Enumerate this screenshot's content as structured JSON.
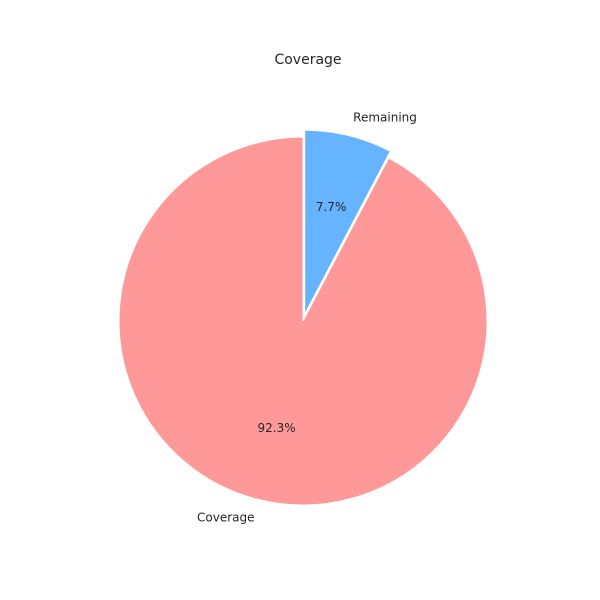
{
  "chart_data": {
    "type": "pie",
    "title": "Coverage",
    "slices": [
      {
        "label": "Remaining",
        "value": 7.7,
        "pct_label": "7.7%",
        "color": "#66b3ff",
        "exploded": true
      },
      {
        "label": "Coverage",
        "value": 92.3,
        "pct_label": "92.3%",
        "color": "#ff9999",
        "exploded": false
      }
    ],
    "start_angle_deg": 90,
    "direction": "clockwise",
    "legend": "none"
  }
}
